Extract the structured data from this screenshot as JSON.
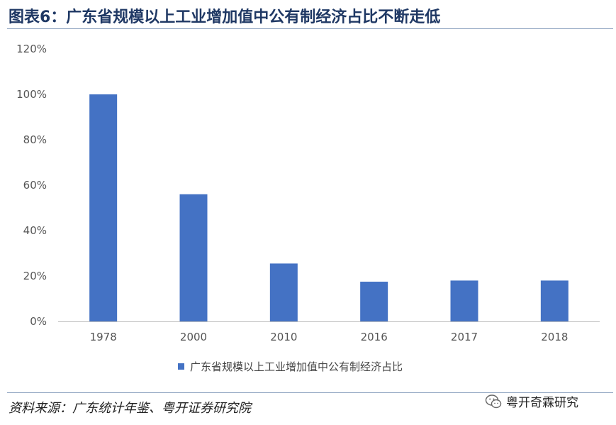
{
  "header": {
    "title": "图表6：广东省规模以上工业增加值中公有制经济占比不断走低"
  },
  "footer": {
    "source": "资料来源：广东统计年鉴、粤开证券研究院",
    "watermark": "粤开奇霖研究",
    "watermark_icon": "wechat-icon"
  },
  "chart_data": {
    "type": "bar",
    "title": "",
    "xlabel": "",
    "ylabel": "",
    "categories": [
      "1978",
      "2000",
      "2010",
      "2016",
      "2017",
      "2018"
    ],
    "series": [
      {
        "name": "广东省规模以上工业增加值中公有制经济占比",
        "values": [
          100,
          56,
          25.5,
          17.5,
          18,
          18
        ],
        "color": "#4472c4"
      }
    ],
    "ylim": [
      0,
      120
    ],
    "yticks": [
      0,
      20,
      40,
      60,
      80,
      100,
      120
    ],
    "ytick_labels": [
      "0%",
      "20%",
      "40%",
      "60%",
      "80%",
      "100%",
      "120%"
    ],
    "grid": false,
    "legend": "bottom-center"
  }
}
